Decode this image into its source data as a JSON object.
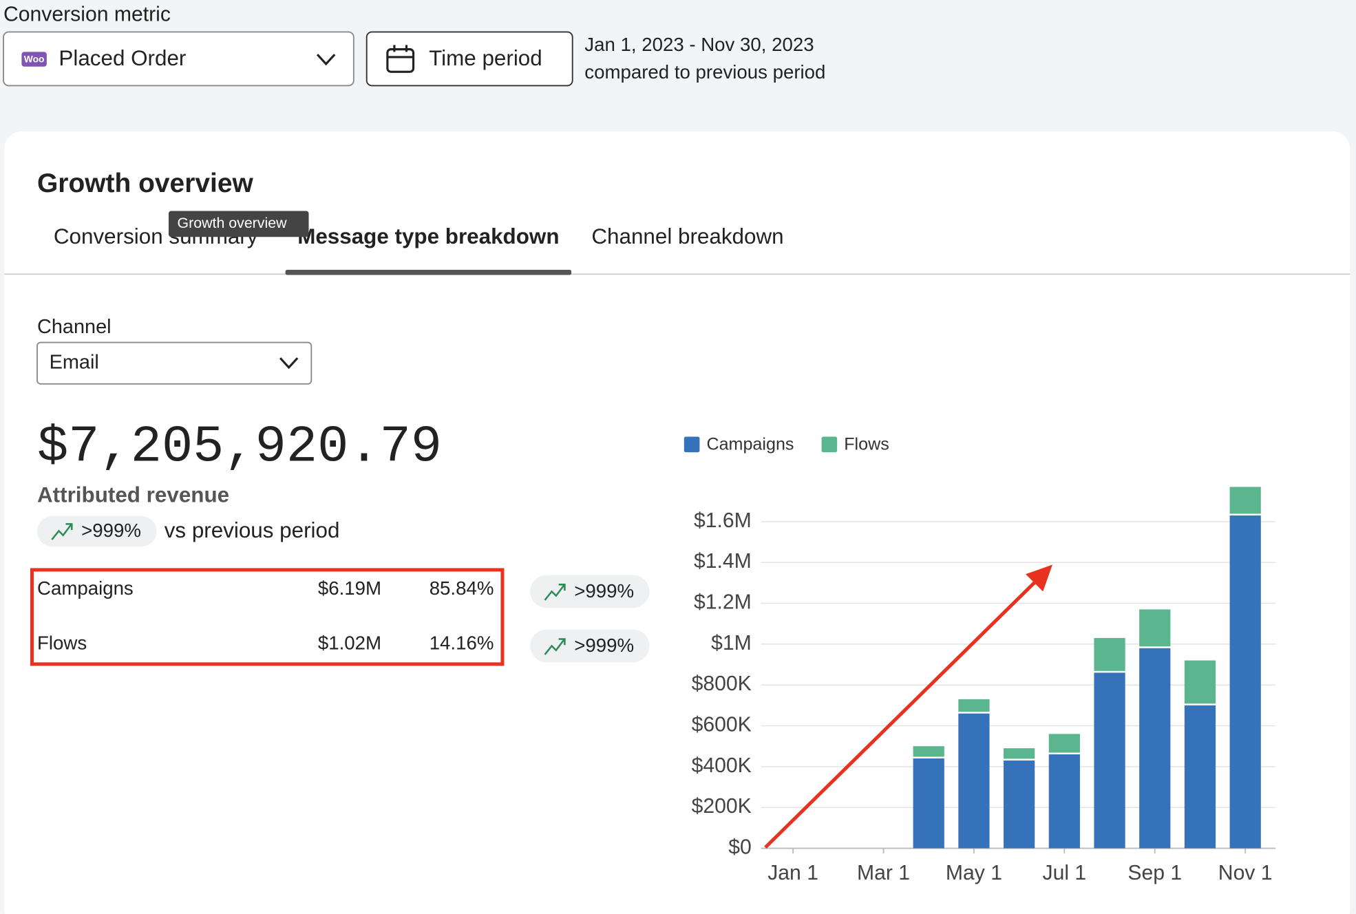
{
  "header": {
    "metric_label": "Conversion metric",
    "metric_value": "Placed Order",
    "metric_icon": "Woo",
    "time_button": "Time period",
    "date_range": "Jan 1, 2023 - Nov 30, 2023",
    "comparison": "compared to previous period"
  },
  "card": {
    "title": "Growth overview",
    "tooltip": "Growth overview",
    "tabs": [
      "Conversion summary",
      "Message type breakdown",
      "Channel breakdown"
    ],
    "active_tab": 1,
    "channel_label": "Channel",
    "channel_value": "Email",
    "total": "$7,205,920.79",
    "total_label": "Attributed revenue",
    "total_change": ">999%",
    "total_change_suffix": "vs previous period",
    "rows": [
      {
        "name": "Campaigns",
        "amount": "$6.19M",
        "share": "85.84%",
        "change": ">999%"
      },
      {
        "name": "Flows",
        "amount": "$1.02M",
        "share": "14.16%",
        "change": ">999%"
      }
    ]
  },
  "chart_data": {
    "type": "stacked_bar",
    "categories": [
      "Jan 1",
      null,
      "Mar 1",
      null,
      "May 1",
      null,
      "Jul 1",
      null,
      "Sep 1",
      null,
      "Nov 1"
    ],
    "series": [
      {
        "name": "Campaigns",
        "color": "#3572b9",
        "values": [
          0,
          0,
          0,
          440000,
          660000,
          430000,
          460000,
          860000,
          980000,
          700000,
          1630000
        ]
      },
      {
        "name": "Flows",
        "color": "#5bb58e",
        "values": [
          0,
          0,
          0,
          60000,
          70000,
          60000,
          100000,
          170000,
          190000,
          220000,
          140000
        ]
      }
    ],
    "ylim": [
      0,
      1800000
    ],
    "yticks": [
      {
        "value": 0,
        "label": "$0"
      },
      {
        "value": 200000,
        "label": "$200K"
      },
      {
        "value": 400000,
        "label": "$400K"
      },
      {
        "value": 600000,
        "label": "$600K"
      },
      {
        "value": 800000,
        "label": "$800K"
      },
      {
        "value": 1000000,
        "label": "$1M"
      },
      {
        "value": 1200000,
        "label": "$1.2M"
      },
      {
        "value": 1400000,
        "label": "$1.4M"
      },
      {
        "value": 1600000,
        "label": "$1.6M"
      }
    ],
    "grid": true,
    "legend": "top-left"
  }
}
